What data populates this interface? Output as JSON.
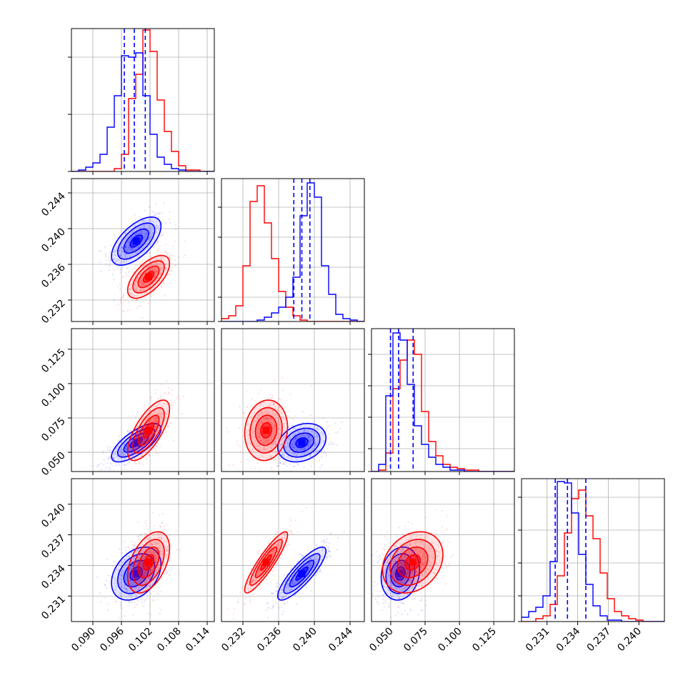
{
  "chart_data": {
    "type": "corner",
    "grid": true,
    "series": [
      {
        "color": "#0000ff"
      },
      {
        "color": "#ff0000"
      }
    ],
    "quantile_lines_color": "#0000ff",
    "parameters": [
      {
        "range": [
          0.0855,
          0.1155
        ],
        "ticks": [
          "0.090",
          "0.096",
          "0.102",
          "0.108",
          "0.114"
        ]
      },
      {
        "range": [
          0.2296,
          0.2456
        ],
        "ticks": [
          "0.232",
          "0.236",
          "0.240",
          "0.244"
        ]
      },
      {
        "range": [
          0.036,
          0.14
        ],
        "ticks": [
          "0.050",
          "0.075",
          "0.100",
          "0.125"
        ]
      },
      {
        "range": [
          0.2285,
          0.2425
        ],
        "ticks": [
          "0.231",
          "0.234",
          "0.237",
          "0.240"
        ]
      }
    ],
    "diagonal": [
      {
        "ylim": [
          0,
          1
        ],
        "grid_y": [
          0.4,
          0.8
        ],
        "quantiles": [
          0.0966,
          0.0987,
          0.101
        ],
        "hist_blue": {
          "edges": [
            0.0855,
            0.087,
            0.0885,
            0.09,
            0.0915,
            0.093,
            0.0945,
            0.096,
            0.0975,
            0.099,
            0.1005,
            0.102,
            0.1035,
            0.105,
            0.1065,
            0.108,
            0.1095,
            0.111,
            0.1125,
            0.114,
            0.1155
          ],
          "values": [
            0,
            0.01,
            0.03,
            0.06,
            0.12,
            0.31,
            0.53,
            0.81,
            0.8,
            0.83,
            0.53,
            0.26,
            0.1,
            0.05,
            0.02,
            0.01,
            0,
            0,
            0,
            0
          ]
        },
        "hist_red": {
          "edges": [
            0.0855,
            0.087,
            0.0885,
            0.09,
            0.0915,
            0.093,
            0.0945,
            0.096,
            0.0975,
            0.099,
            0.1005,
            0.102,
            0.1035,
            0.105,
            0.1065,
            0.108,
            0.1095,
            0.111,
            0.1125,
            0.114,
            0.1155
          ],
          "values": [
            0,
            0,
            0,
            0,
            0,
            0,
            0.02,
            0.12,
            0.51,
            0.68,
            0.99,
            0.84,
            0.5,
            0.28,
            0.14,
            0.04,
            0.01,
            0.01,
            0,
            0
          ]
        }
      },
      {
        "ylim": [
          0,
          1
        ],
        "grid_y": [
          0.17,
          0.38,
          0.59,
          0.8
        ],
        "quantiles": [
          0.2377,
          0.2386,
          0.2395
        ],
        "hist_blue": {
          "edges": [
            0.2296,
            0.2304,
            0.2312,
            0.232,
            0.2328,
            0.2336,
            0.2344,
            0.2352,
            0.236,
            0.2368,
            0.2376,
            0.2384,
            0.2392,
            0.24,
            0.2408,
            0.2416,
            0.2424,
            0.2432,
            0.244,
            0.2448,
            0.2456
          ],
          "values": [
            0,
            0,
            0,
            0,
            0,
            0.01,
            0.03,
            0.06,
            0.1,
            0.17,
            0.31,
            0.74,
            0.97,
            0.87,
            0.39,
            0.19,
            0.05,
            0.02,
            0.01,
            0
          ]
        },
        "hist_red": {
          "edges": [
            0.2296,
            0.2304,
            0.2312,
            0.232,
            0.2328,
            0.2336,
            0.2344,
            0.2352,
            0.236,
            0.2368,
            0.2376,
            0.2384,
            0.2392,
            0.24,
            0.2408,
            0.2416,
            0.2424,
            0.2432,
            0.244,
            0.2448,
            0.2456
          ],
          "values": [
            0.02,
            0.04,
            0.11,
            0.39,
            0.84,
            0.95,
            0.69,
            0.44,
            0.21,
            0.1,
            0.04,
            0.01,
            0,
            0,
            0,
            0,
            0,
            0,
            0,
            0
          ]
        }
      },
      {
        "ylim": [
          0,
          1
        ],
        "grid_y": [
          0.16,
          0.38,
          0.6,
          0.82
        ],
        "quantiles": [
          0.0498,
          0.0557,
          0.0663
        ],
        "hist_blue": {
          "edges": [
            0.036,
            0.0412,
            0.0464,
            0.0516,
            0.0568,
            0.062,
            0.0672,
            0.0724,
            0.0776,
            0.0828,
            0.088,
            0.0932,
            0.0984,
            0.1036,
            0.1088,
            0.114,
            0.1192,
            0.1244,
            0.1296,
            0.1348,
            0.14
          ],
          "values": [
            0,
            0.05,
            0.53,
            0.97,
            0.92,
            0.61,
            0.32,
            0.19,
            0.1,
            0.05,
            0.03,
            0.01,
            0.01,
            0,
            0,
            0,
            0,
            0,
            0,
            0
          ]
        },
        "hist_red": {
          "edges": [
            0.036,
            0.0412,
            0.0464,
            0.0516,
            0.0568,
            0.062,
            0.0672,
            0.0724,
            0.0776,
            0.0828,
            0.088,
            0.0932,
            0.0984,
            0.1036,
            0.1088,
            0.114,
            0.1192,
            0.1244,
            0.1296,
            0.1348,
            0.14
          ],
          "values": [
            0,
            0.01,
            0.13,
            0.58,
            0.78,
            0.92,
            0.82,
            0.42,
            0.21,
            0.11,
            0.05,
            0.03,
            0.02,
            0.01,
            0.01,
            0,
            0,
            0,
            0,
            0
          ]
        }
      },
      {
        "ylim": [
          0,
          1
        ],
        "grid_y": [
          0.18,
          0.41,
          0.64,
          0.87
        ],
        "quantiles": [
          0.2318,
          0.233,
          0.2348
        ],
        "hist_blue": {
          "edges": [
            0.2285,
            0.2292,
            0.2299,
            0.2306,
            0.2313,
            0.232,
            0.2327,
            0.2334,
            0.2341,
            0.2348,
            0.2355,
            0.2362,
            0.2369,
            0.2376,
            0.2383,
            0.239,
            0.2397,
            0.2404,
            0.2411,
            0.2418,
            0.2425
          ],
          "values": [
            0.03,
            0.07,
            0.1,
            0.18,
            0.42,
            0.98,
            0.97,
            0.76,
            0.47,
            0.26,
            0.11,
            0.04,
            0.01,
            0.01,
            0,
            0,
            0,
            0,
            0,
            0
          ]
        },
        "hist_red": {
          "edges": [
            0.2285,
            0.2292,
            0.2299,
            0.2306,
            0.2313,
            0.232,
            0.2327,
            0.2334,
            0.2341,
            0.2348,
            0.2355,
            0.2362,
            0.2369,
            0.2376,
            0.2383,
            0.239,
            0.2397,
            0.2404,
            0.2411,
            0.2418,
            0.2425
          ],
          "values": [
            0,
            0,
            0.02,
            0.04,
            0.12,
            0.32,
            0.62,
            0.86,
            0.92,
            0.74,
            0.58,
            0.34,
            0.16,
            0.07,
            0.04,
            0.02,
            0.01,
            0,
            0,
            0
          ]
        }
      }
    ],
    "pairs": [
      {
        "row": 1,
        "col": 0,
        "blue": {
          "mean": [
            0.0991,
            0.2386
          ],
          "sd": [
            0.0026,
            0.00135
          ],
          "rho": 0.62
        },
        "red": {
          "mean": [
            0.1017,
            0.2346
          ],
          "sd": [
            0.0022,
            0.0012
          ],
          "rho": 0.62
        }
      },
      {
        "row": 2,
        "col": 0,
        "blue": {
          "mean": [
            0.0991,
            0.057
          ],
          "sd": [
            0.0026,
            0.007
          ],
          "rho": 0.72
        },
        "red": {
          "mean": [
            0.1017,
            0.066
          ],
          "sd": [
            0.0022,
            0.011
          ],
          "rho": 0.7
        }
      },
      {
        "row": 2,
        "col": 1,
        "blue": {
          "mean": [
            0.2386,
            0.057
          ],
          "sd": [
            0.00135,
            0.007
          ],
          "rho": 0.25
        },
        "red": {
          "mean": [
            0.2346,
            0.066
          ],
          "sd": [
            0.0012,
            0.011
          ],
          "rho": 0.1
        }
      },
      {
        "row": 3,
        "col": 0,
        "blue": {
          "mean": [
            0.0991,
            0.2332
          ],
          "sd": [
            0.0026,
            0.0013
          ],
          "rho": 0.35
        },
        "red": {
          "mean": [
            0.1017,
            0.2343
          ],
          "sd": [
            0.0022,
            0.0015
          ],
          "rho": 0.45
        }
      },
      {
        "row": 3,
        "col": 1,
        "blue": {
          "mean": [
            0.2386,
            0.2332
          ],
          "sd": [
            0.00135,
            0.0013
          ],
          "rho": 0.85
        },
        "red": {
          "mean": [
            0.2346,
            0.2343
          ],
          "sd": [
            0.0012,
            0.0015
          ],
          "rho": 0.9
        }
      },
      {
        "row": 3,
        "col": 2,
        "blue": {
          "mean": [
            0.057,
            0.2332
          ],
          "sd": [
            0.007,
            0.0013
          ],
          "rho": 0.15
        },
        "red": {
          "mean": [
            0.066,
            0.2343
          ],
          "sd": [
            0.011,
            0.0015
          ],
          "rho": 0.25
        }
      }
    ]
  }
}
